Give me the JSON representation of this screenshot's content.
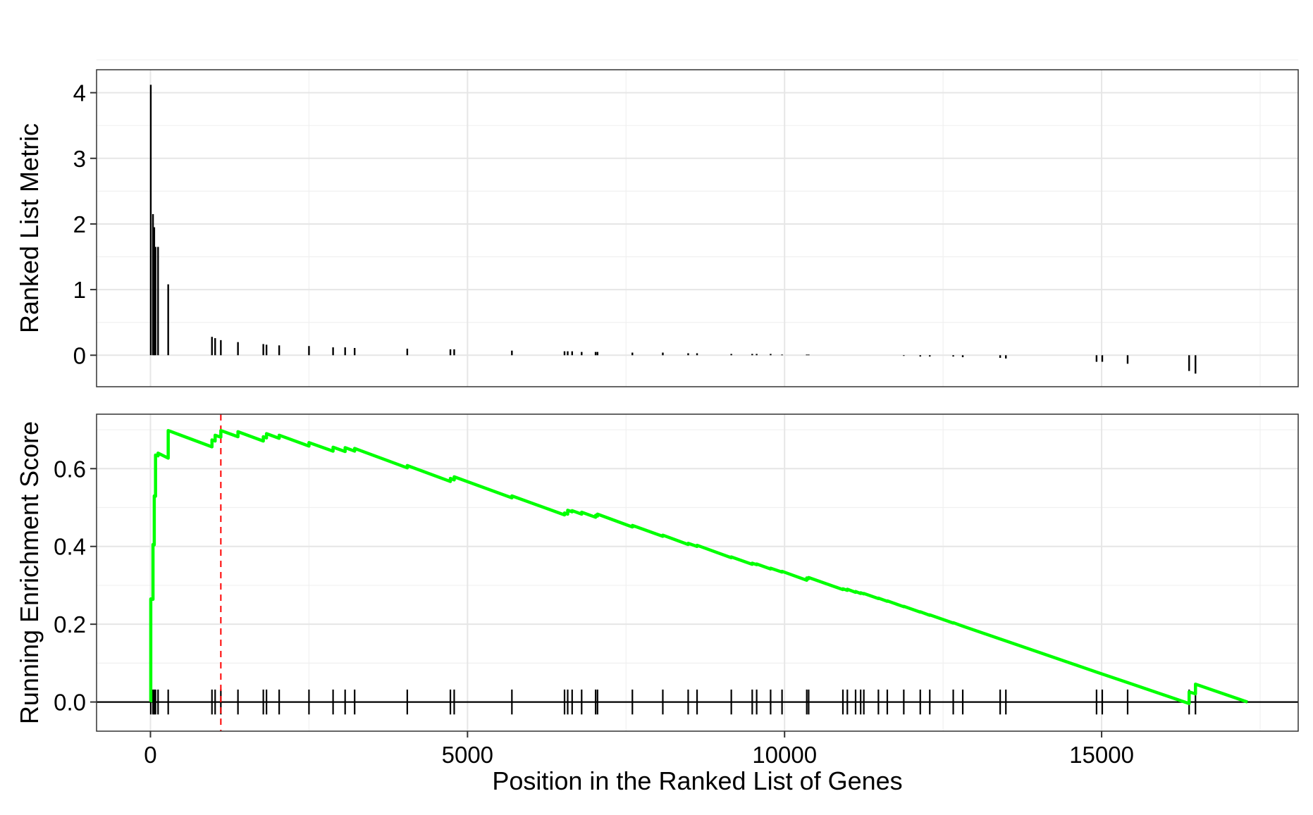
{
  "chart_data": [
    {
      "type": "bar",
      "panel": "top",
      "ylabel": "Ranked List Metric",
      "xlabel": "",
      "xlim": [
        -850,
        18100
      ],
      "ylim": [
        -0.48,
        4.35
      ],
      "yticks": [
        0,
        1,
        2,
        3,
        4
      ],
      "xgrid": [
        0,
        5000,
        10000,
        15000
      ],
      "grid": true,
      "x": [
        5,
        40,
        60,
        80,
        120,
        280,
        970,
        1020,
        1110,
        1380,
        1780,
        1830,
        2030,
        2500,
        2880,
        3070,
        3220,
        4050,
        4730,
        4790,
        5700,
        6530,
        6580,
        6650,
        6800,
        7020,
        7050,
        7600,
        8080,
        8480,
        8620,
        9160,
        9490,
        9560,
        9780,
        9960,
        10350,
        10380,
        10920,
        10990,
        11120,
        11200,
        11250,
        11480,
        11620,
        11880,
        12140,
        12290,
        12660,
        12810,
        13400,
        13490,
        14920,
        15010,
        15410,
        16380,
        16480
      ],
      "values": [
        4.12,
        2.15,
        1.95,
        1.65,
        1.65,
        1.08,
        0.28,
        0.26,
        0.23,
        0.2,
        0.17,
        0.16,
        0.15,
        0.14,
        0.12,
        0.12,
        0.11,
        0.1,
        0.09,
        0.09,
        0.07,
        0.06,
        0.06,
        0.06,
        0.05,
        0.05,
        0.05,
        0.04,
        0.04,
        0.03,
        0.03,
        0.02,
        0.02,
        0.02,
        0.02,
        0.01,
        0.01,
        0.01,
        0.0,
        0.0,
        0.0,
        0.0,
        0.0,
        0.0,
        0.0,
        -0.01,
        -0.02,
        -0.02,
        -0.02,
        -0.03,
        -0.04,
        -0.05,
        -0.1,
        -0.1,
        -0.13,
        -0.24,
        -0.28
      ]
    },
    {
      "type": "line",
      "panel": "bottom",
      "ylabel": "Running Enrichment Score",
      "xlabel": "Position in the Ranked List of Genes",
      "xlim": [
        -850,
        18100
      ],
      "ylim": [
        -0.075,
        0.74
      ],
      "yticks": [
        0.0,
        0.2,
        0.4,
        0.6
      ],
      "yticklabels": [
        "0.0",
        "0.2",
        "0.4",
        "0.6"
      ],
      "xticks": [
        0,
        5000,
        10000,
        15000
      ],
      "xticklabels": [
        "0",
        "5000",
        "10000",
        "15000"
      ],
      "grid": true,
      "series": [
        {
          "color": "#00ff00",
          "x": [
            0,
            5,
            5,
            40,
            40,
            60,
            60,
            80,
            80,
            120,
            120,
            280,
            280,
            970,
            970,
            1020,
            1020,
            1110,
            1110,
            1380,
            1380,
            1780,
            1780,
            1830,
            1830,
            2030,
            2030,
            2500,
            2500,
            2880,
            2880,
            3070,
            3070,
            3220,
            3220,
            4050,
            4050,
            4730,
            4730,
            4790,
            4790,
            5700,
            5700,
            6530,
            6530,
            6580,
            6580,
            6650,
            6650,
            6800,
            6800,
            7020,
            7020,
            7050,
            7050,
            7600,
            7600,
            8080,
            8080,
            8480,
            8480,
            8620,
            8620,
            9160,
            9160,
            9490,
            9490,
            9560,
            9560,
            9780,
            9780,
            9960,
            9960,
            10350,
            10350,
            10380,
            10380,
            10920,
            10920,
            10990,
            10990,
            11120,
            11120,
            11200,
            11200,
            11250,
            11250,
            11480,
            11480,
            11620,
            11620,
            11880,
            11880,
            12140,
            12140,
            12290,
            12290,
            12660,
            12660,
            12810,
            12810,
            13400,
            13400,
            13490,
            13490,
            14920,
            14920,
            15010,
            15010,
            15410,
            15410,
            16380,
            16380,
            16480,
            16480,
            17300
          ],
          "y": [
            0.0,
            0.002,
            0.265,
            0.264,
            0.405,
            0.404,
            0.53,
            0.529,
            0.635,
            0.633,
            0.64,
            0.627,
            0.698,
            0.656,
            0.674,
            0.671,
            0.686,
            0.681,
            0.698,
            0.682,
            0.695,
            0.671,
            0.682,
            0.679,
            0.69,
            0.678,
            0.686,
            0.658,
            0.667,
            0.645,
            0.655,
            0.644,
            0.654,
            0.645,
            0.652,
            0.602,
            0.608,
            0.567,
            0.575,
            0.571,
            0.579,
            0.525,
            0.53,
            0.481,
            0.486,
            0.483,
            0.493,
            0.489,
            0.492,
            0.483,
            0.488,
            0.475,
            0.48,
            0.478,
            0.483,
            0.45,
            0.454,
            0.426,
            0.429,
            0.405,
            0.408,
            0.4,
            0.403,
            0.371,
            0.373,
            0.354,
            0.357,
            0.353,
            0.355,
            0.342,
            0.344,
            0.334,
            0.336,
            0.313,
            0.319,
            0.317,
            0.32,
            0.289,
            0.291,
            0.287,
            0.29,
            0.282,
            0.284,
            0.279,
            0.281,
            0.278,
            0.279,
            0.266,
            0.267,
            0.259,
            0.26,
            0.245,
            0.246,
            0.231,
            0.232,
            0.223,
            0.224,
            0.203,
            0.204,
            0.195,
            0.195,
            0.162,
            0.162,
            0.157,
            0.157,
            0.077,
            0.077,
            0.072,
            0.072,
            0.05,
            0.05,
            -0.004,
            0.026,
            0.021,
            0.046,
            0.0
          ]
        }
      ],
      "gene_hits": [
        5,
        40,
        60,
        80,
        120,
        280,
        970,
        1020,
        1110,
        1380,
        1780,
        1830,
        2030,
        2500,
        2880,
        3070,
        3220,
        4050,
        4730,
        4790,
        5700,
        6530,
        6580,
        6650,
        6800,
        7020,
        7050,
        7600,
        8080,
        8480,
        8620,
        9160,
        9490,
        9560,
        9780,
        9960,
        10350,
        10380,
        10920,
        10990,
        11120,
        11200,
        11250,
        11480,
        11620,
        11880,
        12140,
        12290,
        12660,
        12810,
        13400,
        13490,
        14920,
        15010,
        15410,
        16380,
        16480
      ],
      "vline": {
        "x": 1110,
        "color": "#ff0000",
        "style": "dashed"
      },
      "hline": {
        "y": 0
      }
    }
  ]
}
